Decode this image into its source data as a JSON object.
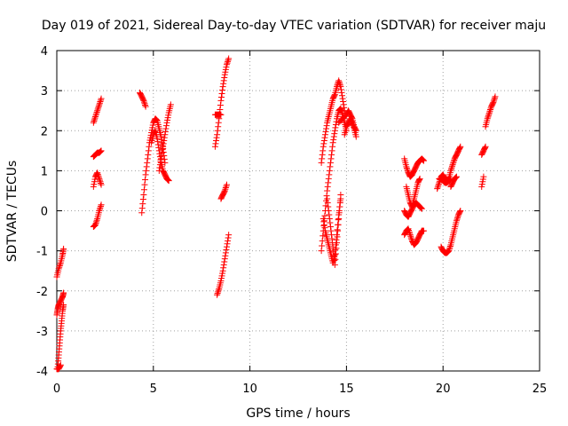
{
  "chart_data": {
    "type": "scatter",
    "title": "Day 019 of 2021, Sidereal Day-to-day VTEC variation (SDTVAR) for receiver maju",
    "xlabel": "GPS time / hours",
    "ylabel": "SDTVAR / TECUs",
    "xlim": [
      0,
      25
    ],
    "ylim": [
      -4,
      4
    ],
    "xticks": [
      "0",
      "5",
      "10",
      "15",
      "20",
      "25"
    ],
    "yticks": [
      "-4",
      "-3",
      "-2",
      "-1",
      "0",
      "1",
      "2",
      "3",
      "4"
    ],
    "grid": true,
    "marker": "+",
    "color": "#ff0000",
    "segments": [
      {
        "x": [
          0.0,
          0.1,
          0.2,
          0.3,
          0.35
        ],
        "y": [
          -1.65,
          -1.45,
          -1.3,
          -1.1,
          -0.95
        ]
      },
      {
        "x": [
          0.0,
          0.05,
          0.1,
          0.2,
          0.3,
          0.35
        ],
        "y": [
          -2.6,
          -2.45,
          -2.35,
          -2.25,
          -2.15,
          -2.05
        ]
      },
      {
        "x": [
          0.05,
          0.1,
          0.15,
          0.2,
          0.25,
          0.3,
          0.35
        ],
        "y": [
          -3.9,
          -3.6,
          -3.3,
          -3.0,
          -2.75,
          -2.5,
          -2.35
        ]
      },
      {
        "x": [
          0.0,
          0.1,
          0.2
        ],
        "y": [
          -3.95,
          -3.95,
          -3.85
        ]
      },
      {
        "x": [
          1.9,
          2.0,
          2.1,
          2.2,
          2.3
        ],
        "y": [
          2.2,
          2.35,
          2.5,
          2.65,
          2.8
        ]
      },
      {
        "x": [
          1.9,
          2.0,
          2.1,
          2.2,
          2.3
        ],
        "y": [
          1.35,
          1.4,
          1.45,
          1.45,
          1.5
        ]
      },
      {
        "x": [
          1.9,
          2.0,
          2.1,
          2.2,
          2.3
        ],
        "y": [
          0.6,
          0.85,
          0.95,
          0.8,
          0.65
        ]
      },
      {
        "x": [
          1.9,
          2.0,
          2.1,
          2.2,
          2.3
        ],
        "y": [
          -0.4,
          -0.35,
          -0.2,
          0.0,
          0.15
        ]
      },
      {
        "x": [
          4.3,
          4.4,
          4.5,
          4.6
        ],
        "y": [
          2.95,
          2.85,
          2.75,
          2.6
        ]
      },
      {
        "x": [
          4.4,
          4.5,
          4.6,
          4.7,
          4.8,
          4.9,
          5.0,
          5.1,
          5.2,
          5.3,
          5.4,
          5.5,
          5.6
        ],
        "y": [
          -0.05,
          0.4,
          0.9,
          1.3,
          1.7,
          1.95,
          2.2,
          2.3,
          2.25,
          2.05,
          1.85,
          1.55,
          1.2
        ]
      },
      {
        "x": [
          4.9,
          5.0,
          5.1,
          5.2,
          5.3,
          5.4,
          5.5,
          5.6,
          5.7,
          5.8
        ],
        "y": [
          1.7,
          1.9,
          2.0,
          1.8,
          1.5,
          1.2,
          1.0,
          0.9,
          0.8,
          0.75
        ]
      },
      {
        "x": [
          5.3,
          5.4,
          5.5,
          5.6,
          5.7,
          5.8,
          5.9
        ],
        "y": [
          1.0,
          1.3,
          1.6,
          1.9,
          2.2,
          2.45,
          2.65
        ]
      },
      {
        "x": [
          8.2,
          8.3,
          8.4,
          8.5,
          8.6,
          8.7,
          8.8,
          8.9
        ],
        "y": [
          1.6,
          1.9,
          2.3,
          2.75,
          3.1,
          3.4,
          3.65,
          3.8
        ]
      },
      {
        "x": [
          8.2,
          8.3,
          8.4,
          8.5
        ],
        "y": [
          2.4,
          2.4,
          2.4,
          2.4
        ]
      },
      {
        "x": [
          8.5,
          8.6,
          8.7,
          8.8
        ],
        "y": [
          0.3,
          0.4,
          0.5,
          0.65
        ]
      },
      {
        "x": [
          8.3,
          8.4,
          8.5,
          8.6,
          8.7,
          8.8,
          8.9
        ],
        "y": [
          -2.1,
          -1.95,
          -1.75,
          -1.5,
          -1.2,
          -0.9,
          -0.6
        ]
      },
      {
        "x": [
          13.7,
          13.8,
          13.9,
          14.0,
          14.1,
          14.2,
          14.3,
          14.4,
          14.5,
          14.6,
          14.7,
          14.8,
          14.9
        ],
        "y": [
          1.2,
          1.6,
          1.9,
          2.2,
          2.4,
          2.6,
          2.8,
          2.9,
          3.1,
          3.25,
          3.1,
          2.8,
          2.5
        ]
      },
      {
        "x": [
          13.7,
          13.8,
          13.9,
          14.0,
          14.1,
          14.2,
          14.3,
          14.4,
          14.5,
          14.6,
          14.7,
          14.8,
          14.9,
          15.0
        ],
        "y": [
          -1.0,
          -0.5,
          0.0,
          0.5,
          0.9,
          1.3,
          1.7,
          2.0,
          2.3,
          2.5,
          2.55,
          2.4,
          2.2,
          2.0
        ]
      },
      {
        "x": [
          13.8,
          13.9,
          14.0,
          14.1,
          14.2,
          14.3,
          14.4,
          14.5,
          14.6,
          14.7
        ],
        "y": [
          -0.2,
          -0.5,
          -0.7,
          -0.9,
          -1.1,
          -1.3,
          -1.1,
          -0.6,
          -0.1,
          0.3
        ]
      },
      {
        "x": [
          14.0,
          14.1,
          14.2,
          14.3,
          14.4,
          14.5,
          14.6,
          14.7
        ],
        "y": [
          0.3,
          -0.1,
          -0.5,
          -0.9,
          -1.35,
          -0.8,
          -0.2,
          0.4
        ]
      },
      {
        "x": [
          14.6,
          14.8,
          15.0,
          15.1,
          15.2,
          15.3,
          15.4,
          15.5
        ],
        "y": [
          2.2,
          2.3,
          2.4,
          2.5,
          2.4,
          2.3,
          2.1,
          2.0
        ]
      },
      {
        "x": [
          14.9,
          15.0,
          15.1,
          15.2,
          15.3,
          15.4,
          15.5
        ],
        "y": [
          1.9,
          2.1,
          2.2,
          2.3,
          2.2,
          2.05,
          1.85
        ]
      },
      {
        "x": [
          18.0,
          18.1,
          18.2,
          18.3,
          18.4,
          18.5,
          18.6,
          18.7,
          18.8,
          18.9,
          19.0
        ],
        "y": [
          1.3,
          1.1,
          0.95,
          0.85,
          0.9,
          1.0,
          1.1,
          1.2,
          1.25,
          1.3,
          1.25
        ]
      },
      {
        "x": [
          18.1,
          18.2,
          18.3,
          18.4,
          18.5,
          18.6,
          18.7,
          18.8
        ],
        "y": [
          0.6,
          0.4,
          0.2,
          0.1,
          0.3,
          0.5,
          0.7,
          0.8
        ]
      },
      {
        "x": [
          18.0,
          18.1,
          18.2,
          18.3,
          18.4,
          18.5,
          18.6,
          18.7,
          18.8,
          18.9
        ],
        "y": [
          0.0,
          -0.1,
          -0.15,
          -0.05,
          0.05,
          0.15,
          0.2,
          0.15,
          0.1,
          0.05
        ]
      },
      {
        "x": [
          18.0,
          18.1,
          18.2,
          18.3,
          18.4,
          18.5,
          18.6,
          18.7,
          18.8,
          18.9,
          19.0
        ],
        "y": [
          -0.6,
          -0.5,
          -0.45,
          -0.6,
          -0.75,
          -0.85,
          -0.8,
          -0.7,
          -0.6,
          -0.5,
          -0.5
        ]
      },
      {
        "x": [
          19.7,
          19.8,
          19.9,
          20.0,
          20.1,
          20.2,
          20.3,
          20.4,
          20.5,
          20.6,
          20.7,
          20.8,
          20.9
        ],
        "y": [
          0.55,
          0.7,
          0.85,
          0.9,
          0.8,
          0.75,
          0.8,
          1.0,
          1.15,
          1.3,
          1.4,
          1.5,
          1.6
        ]
      },
      {
        "x": [
          19.8,
          19.9,
          20.0,
          20.1,
          20.2,
          20.3,
          20.4
        ],
        "y": [
          0.8,
          0.8,
          0.75,
          0.7,
          0.7,
          0.75,
          0.8
        ]
      },
      {
        "x": [
          19.9,
          20.0,
          20.1,
          20.2,
          20.3,
          20.4,
          20.5,
          20.6,
          20.7,
          20.8,
          20.9
        ],
        "y": [
          -0.9,
          -1.0,
          -1.05,
          -1.05,
          -1.0,
          -0.85,
          -0.65,
          -0.45,
          -0.25,
          -0.1,
          0.0
        ]
      },
      {
        "x": [
          20.4,
          20.5,
          20.6,
          20.7
        ],
        "y": [
          0.6,
          0.7,
          0.8,
          0.85
        ]
      },
      {
        "x": [
          22.0,
          22.1,
          22.2
        ],
        "y": [
          1.4,
          1.5,
          1.6
        ]
      },
      {
        "x": [
          22.0,
          22.1
        ],
        "y": [
          0.6,
          0.85
        ]
      },
      {
        "x": [
          22.2,
          22.3,
          22.4,
          22.5,
          22.6,
          22.7
        ],
        "y": [
          2.1,
          2.3,
          2.45,
          2.6,
          2.7,
          2.85
        ]
      }
    ]
  }
}
